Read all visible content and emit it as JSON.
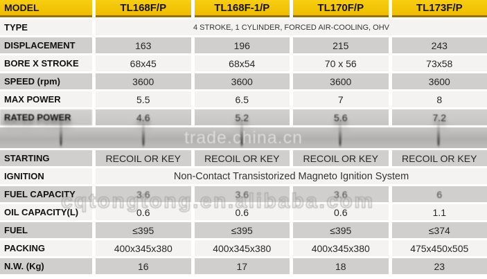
{
  "table": {
    "corner_label": "MODEL",
    "models": [
      "TL168F/P",
      "TL168F-1/P",
      "TL170F/P",
      "TL173F/P"
    ],
    "rows": [
      {
        "label": "TYPE",
        "span": "4 STROKE, 1 CYLINDER, FORCED AIR-COOLING, OHV",
        "bg": "light",
        "span_size": "small"
      },
      {
        "label": "DISPLACEMENT",
        "values": [
          "163",
          "196",
          "215",
          "243"
        ],
        "bg": "gray"
      },
      {
        "label": "BORE X STROKE",
        "values": [
          "68x45",
          "68x54",
          "70 x 56",
          "73x58"
        ],
        "bg": "light"
      },
      {
        "label": "SPEED (rpm)",
        "values": [
          "3600",
          "3600",
          "3600",
          "3600"
        ],
        "bg": "gray"
      },
      {
        "label": "MAX POWER",
        "values": [
          "5.5",
          "6.5",
          "7",
          "8"
        ],
        "bg": "light"
      },
      {
        "label": "RATED POWER",
        "values": [
          "4.6",
          "5.2",
          "5.6",
          "7.2"
        ],
        "bg": "gray",
        "effect": "smeared"
      },
      {
        "label": "STARTING",
        "values": [
          "RECOIL OR KEY",
          "RECOIL OR KEY",
          "RECOIL OR KEY",
          "RECOIL OR KEY"
        ],
        "bg": "gray"
      },
      {
        "label": "IGNITION",
        "span": "Non-Contact Transistorized Magneto Ignition System",
        "bg": "light",
        "span_size": "large"
      },
      {
        "label": "FUEL CAPACITY",
        "values": [
          "3.6",
          "3.6",
          "3.6",
          "6"
        ],
        "bg": "gray",
        "effect": "hazy"
      },
      {
        "label": "OIL CAPACITY(L)",
        "values": [
          "0.6",
          "0.6",
          "0.6",
          "1.1"
        ],
        "bg": "light"
      },
      {
        "label": "FUEL",
        "values": [
          "≤395",
          "≤395",
          "≤395",
          "≤374"
        ],
        "bg": "gray"
      },
      {
        "label": "PACKING",
        "values": [
          "400x345x380",
          "400x345x380",
          "400x345x380",
          "475x450x505"
        ],
        "bg": "light"
      },
      {
        "label": "N.W. (Kg)",
        "values": [
          "16",
          "17",
          "18",
          "23"
        ],
        "bg": "gray"
      }
    ]
  },
  "watermarks": {
    "band_text": "trade.china.cn",
    "band_after_label": "RATED POWER",
    "outline_text": "cqtongtong.en.alibaba.com"
  },
  "colors": {
    "header_yellow": "#f2c50f",
    "header_edge": "#a06c00",
    "row_gray": "#d1cfcd",
    "row_light": "#f4f3f1",
    "band_gray": "#b5b4b2"
  }
}
